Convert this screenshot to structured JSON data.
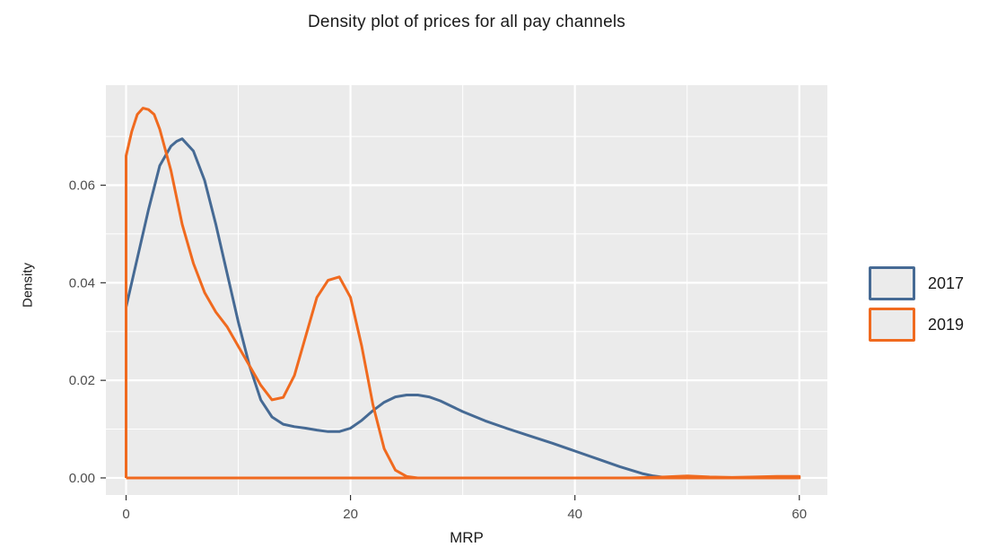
{
  "chart_data": {
    "type": "line",
    "title": "Density plot of prices for all pay channels",
    "xlabel": "MRP",
    "ylabel": "Density",
    "xlim": [
      -1.8,
      62.5
    ],
    "ylim": [
      -0.0035,
      0.0805
    ],
    "x_ticks": [
      0,
      20,
      40,
      60
    ],
    "x_tick_labels": [
      "0",
      "20",
      "40",
      "60"
    ],
    "y_ticks": [
      0.0,
      0.02,
      0.04,
      0.06
    ],
    "y_tick_labels": [
      "0.00",
      "0.02",
      "0.04",
      "0.06"
    ],
    "grid": true,
    "legend_position": "right",
    "series": [
      {
        "name": "2017",
        "color": "#466a94",
        "points": [
          [
            0,
            0.0
          ],
          [
            0,
            0.035
          ],
          [
            1,
            0.045
          ],
          [
            2,
            0.055
          ],
          [
            3,
            0.064
          ],
          [
            4,
            0.068
          ],
          [
            4.5,
            0.069
          ],
          [
            5,
            0.0695
          ],
          [
            6,
            0.067
          ],
          [
            7,
            0.061
          ],
          [
            8,
            0.052
          ],
          [
            9,
            0.042
          ],
          [
            10,
            0.032
          ],
          [
            11,
            0.023
          ],
          [
            12,
            0.016
          ],
          [
            13,
            0.0125
          ],
          [
            14,
            0.011
          ],
          [
            15,
            0.0105
          ],
          [
            16,
            0.0102
          ],
          [
            17,
            0.0098
          ],
          [
            18,
            0.0095
          ],
          [
            19,
            0.0095
          ],
          [
            20,
            0.0102
          ],
          [
            21,
            0.0118
          ],
          [
            22,
            0.0138
          ],
          [
            23,
            0.0155
          ],
          [
            24,
            0.0166
          ],
          [
            25,
            0.017
          ],
          [
            26,
            0.017
          ],
          [
            27,
            0.0166
          ],
          [
            28,
            0.0158
          ],
          [
            29,
            0.0147
          ],
          [
            30,
            0.0136
          ],
          [
            32,
            0.0117
          ],
          [
            34,
            0.0101
          ],
          [
            36,
            0.0086
          ],
          [
            38,
            0.0071
          ],
          [
            40,
            0.0055
          ],
          [
            42,
            0.0039
          ],
          [
            44,
            0.0023
          ],
          [
            46,
            0.0009
          ],
          [
            47,
            0.0004
          ],
          [
            48,
            0.0001
          ],
          [
            50,
            0.0
          ],
          [
            60,
            0.0
          ],
          [
            60,
            0.0
          ],
          [
            0,
            0.0
          ]
        ]
      },
      {
        "name": "2019",
        "color": "#f06a1f",
        "points": [
          [
            0,
            0.0
          ],
          [
            0,
            0.066
          ],
          [
            0.5,
            0.071
          ],
          [
            1,
            0.0745
          ],
          [
            1.5,
            0.0758
          ],
          [
            2,
            0.0755
          ],
          [
            2.5,
            0.0745
          ],
          [
            3,
            0.0715
          ],
          [
            4,
            0.063
          ],
          [
            5,
            0.052
          ],
          [
            6,
            0.044
          ],
          [
            7,
            0.038
          ],
          [
            8,
            0.034
          ],
          [
            9,
            0.031
          ],
          [
            10,
            0.027
          ],
          [
            11,
            0.023
          ],
          [
            12,
            0.019
          ],
          [
            13,
            0.016
          ],
          [
            14,
            0.0165
          ],
          [
            15,
            0.021
          ],
          [
            16,
            0.029
          ],
          [
            17,
            0.037
          ],
          [
            18,
            0.0405
          ],
          [
            19,
            0.0412
          ],
          [
            20,
            0.037
          ],
          [
            21,
            0.027
          ],
          [
            22,
            0.015
          ],
          [
            23,
            0.006
          ],
          [
            24,
            0.0016
          ],
          [
            25,
            0.0003
          ],
          [
            26,
            0.0
          ],
          [
            27,
            0.0
          ],
          [
            45,
            0.0
          ],
          [
            48,
            0.0002
          ],
          [
            50,
            0.0004
          ],
          [
            52,
            0.0002
          ],
          [
            54,
            0.0001
          ],
          [
            56,
            0.0002
          ],
          [
            58,
            0.0003
          ],
          [
            60,
            0.0003
          ],
          [
            60,
            0.0
          ],
          [
            0,
            0.0
          ]
        ]
      }
    ]
  }
}
